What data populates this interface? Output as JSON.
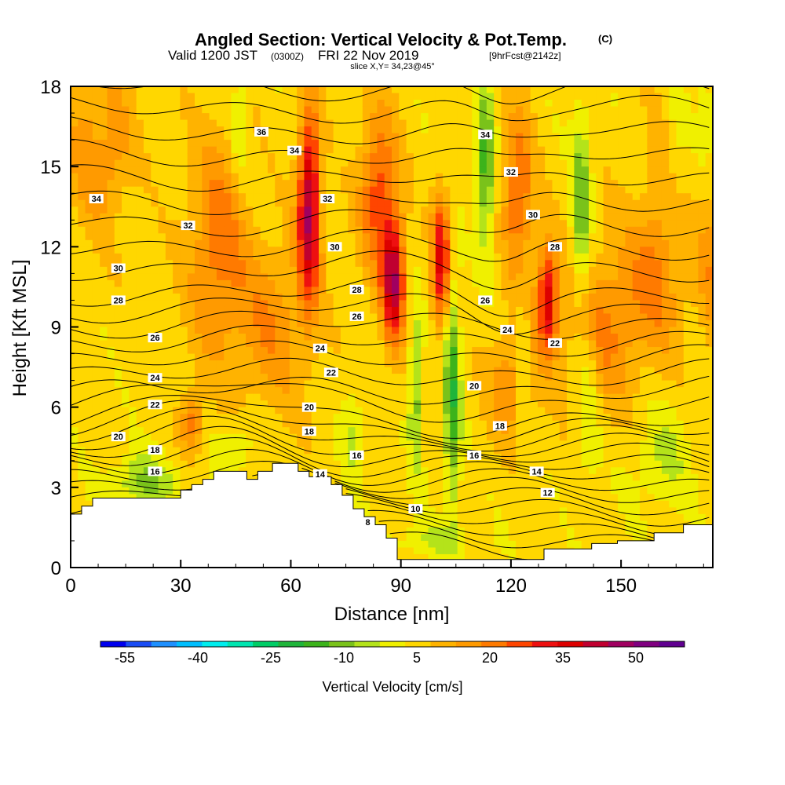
{
  "header": {
    "title_main": "Angled Section: Vertical Velocity & Pot.Temp.",
    "title_tag": "(C)",
    "valid_prefix": "Valid 1200 JST",
    "valid_utc": "(0300Z)",
    "valid_date": "FRI 22 Nov 2019",
    "forecast_tag": "[9hrFcst@2142z]",
    "slice_info": "slice X,Y= 34,23@45°"
  },
  "chart_data": {
    "type": "heatmap",
    "title": "Angled Section: Vertical Velocity & Pot.Temp.",
    "xlabel": "Distance [nm]",
    "ylabel": "Height [Kft MSL]",
    "xlim": [
      0,
      175
    ],
    "ylim": [
      0,
      18
    ],
    "xticks": [
      0,
      30,
      60,
      90,
      120,
      150
    ],
    "yticks": [
      0,
      3,
      6,
      9,
      12,
      15,
      18
    ],
    "grid": false,
    "colorbar": {
      "label": "Vertical Velocity [cm/s]",
      "placement": "bottom",
      "range": [
        -60,
        60
      ],
      "tick_values": [
        -55,
        -40,
        -25,
        -10,
        5,
        20,
        35,
        50
      ],
      "tick_labels": [
        "-55",
        "-40",
        "-25",
        "-10",
        "5",
        "20",
        "35",
        "50"
      ],
      "colors": [
        "#0000ee",
        "#1a4cf4",
        "#1e90ff",
        "#00bfff",
        "#00eeee",
        "#00e5b0",
        "#00cd66",
        "#1fb53a",
        "#3cb31b",
        "#7ac21a",
        "#b4e31a",
        "#f0f000",
        "#ffd700",
        "#ffb300",
        "#ff9a00",
        "#ff7a00",
        "#ff4500",
        "#ee1010",
        "#dd0000",
        "#c00030",
        "#a00060",
        "#800080",
        "#600090"
      ]
    },
    "terrain_profile": {
      "x": [
        0,
        3,
        3,
        6,
        6,
        11,
        11,
        30,
        30,
        33,
        33,
        36,
        36,
        39,
        39,
        48,
        48,
        51,
        51,
        55,
        55,
        62,
        62,
        65,
        65,
        71,
        71,
        74,
        74,
        77,
        77,
        80,
        80,
        83,
        83,
        86,
        86,
        89,
        89,
        129,
        129,
        142,
        142,
        149,
        149,
        159,
        159,
        167,
        167,
        175
      ],
      "y": [
        2.0,
        2.0,
        2.3,
        2.3,
        2.6,
        2.6,
        2.6,
        2.6,
        2.9,
        2.9,
        3.1,
        3.1,
        3.3,
        3.3,
        3.6,
        3.6,
        3.3,
        3.3,
        3.6,
        3.6,
        3.9,
        3.9,
        3.6,
        3.6,
        3.4,
        3.4,
        3.1,
        3.1,
        2.7,
        2.7,
        2.2,
        2.2,
        1.9,
        1.9,
        1.6,
        1.6,
        1.1,
        1.1,
        0.3,
        0.3,
        0.7,
        0.7,
        0.9,
        0.9,
        1.0,
        1.0,
        1.3,
        1.3,
        1.6,
        1.6
      ]
    },
    "contour_labels": [
      {
        "x": 52,
        "y": 16.3,
        "text": "36"
      },
      {
        "x": 61,
        "y": 15.6,
        "text": "34"
      },
      {
        "x": 7,
        "y": 13.8,
        "text": "34"
      },
      {
        "x": 113,
        "y": 16.2,
        "text": "34"
      },
      {
        "x": 120,
        "y": 14.8,
        "text": "32"
      },
      {
        "x": 70,
        "y": 13.8,
        "text": "32"
      },
      {
        "x": 32,
        "y": 12.8,
        "text": "32"
      },
      {
        "x": 126,
        "y": 13.2,
        "text": "30"
      },
      {
        "x": 72,
        "y": 12.0,
        "text": "30"
      },
      {
        "x": 13,
        "y": 11.2,
        "text": "30"
      },
      {
        "x": 132,
        "y": 12.0,
        "text": "28"
      },
      {
        "x": 78,
        "y": 10.4,
        "text": "28"
      },
      {
        "x": 13,
        "y": 10.0,
        "text": "28"
      },
      {
        "x": 113,
        "y": 10.0,
        "text": "26"
      },
      {
        "x": 78,
        "y": 9.4,
        "text": "26"
      },
      {
        "x": 23,
        "y": 8.6,
        "text": "26"
      },
      {
        "x": 119,
        "y": 8.9,
        "text": "24"
      },
      {
        "x": 68,
        "y": 8.2,
        "text": "24"
      },
      {
        "x": 23,
        "y": 7.1,
        "text": "24"
      },
      {
        "x": 132,
        "y": 8.4,
        "text": "22"
      },
      {
        "x": 71,
        "y": 7.3,
        "text": "22"
      },
      {
        "x": 23,
        "y": 6.1,
        "text": "22"
      },
      {
        "x": 110,
        "y": 6.8,
        "text": "20"
      },
      {
        "x": 65,
        "y": 6.0,
        "text": "20"
      },
      {
        "x": 13,
        "y": 4.9,
        "text": "20"
      },
      {
        "x": 117,
        "y": 5.3,
        "text": "18"
      },
      {
        "x": 65,
        "y": 5.1,
        "text": "18"
      },
      {
        "x": 23,
        "y": 4.4,
        "text": "18"
      },
      {
        "x": 78,
        "y": 4.2,
        "text": "16"
      },
      {
        "x": 110,
        "y": 4.2,
        "text": "16"
      },
      {
        "x": 23,
        "y": 3.6,
        "text": "16"
      },
      {
        "x": 68,
        "y": 3.5,
        "text": "14"
      },
      {
        "x": 127,
        "y": 3.6,
        "text": "14"
      },
      {
        "x": 130,
        "y": 2.8,
        "text": "12"
      },
      {
        "x": 94,
        "y": 2.2,
        "text": "10"
      },
      {
        "x": 81,
        "y": 1.7,
        "text": "8"
      }
    ]
  }
}
